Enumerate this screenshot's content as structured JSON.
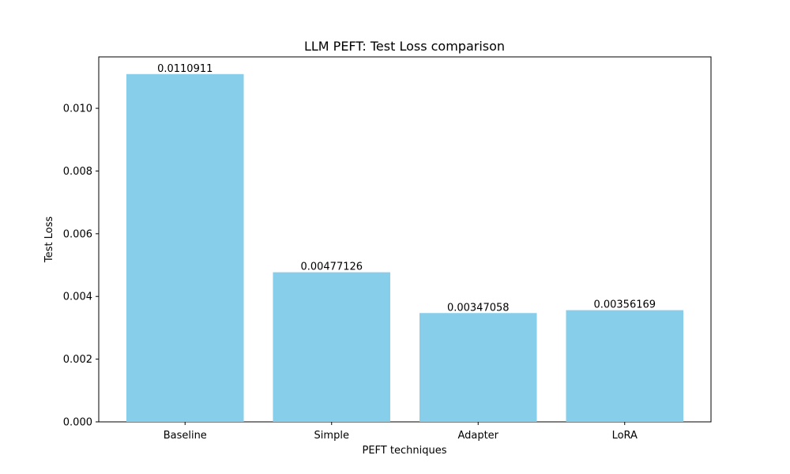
{
  "chart_data": {
    "type": "bar",
    "title": "LLM PEFT: Test Loss comparison",
    "xlabel": "PEFT techniques",
    "ylabel": "Test Loss",
    "categories": [
      "Baseline",
      "Simple",
      "Adapter",
      "LoRA"
    ],
    "values": [
      0.0110911,
      0.00477126,
      0.00347058,
      0.00356169
    ],
    "data_labels": [
      "0.0110911",
      "0.00477126",
      "0.00347058",
      "0.00356169"
    ],
    "ylim": [
      0,
      0.01164
    ],
    "yticks": [
      0.0,
      0.002,
      0.004,
      0.006,
      0.008,
      0.01
    ],
    "ytick_labels": [
      "0.000",
      "0.002",
      "0.004",
      "0.006",
      "0.008",
      "0.010"
    ],
    "bar_color": "#87ceeb",
    "grid": false,
    "legend": "none"
  }
}
